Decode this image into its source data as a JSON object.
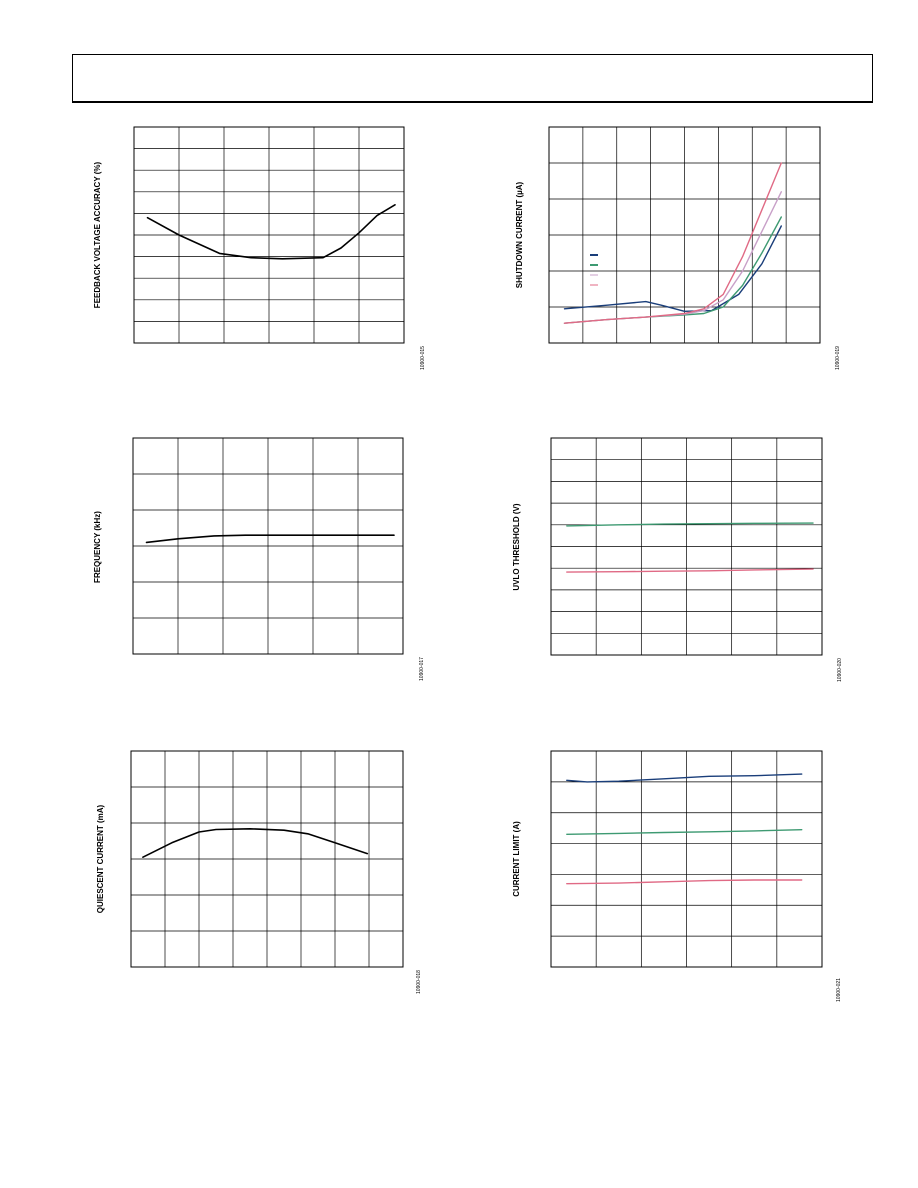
{
  "header": {
    "text": ""
  },
  "chart_data": [
    {
      "type": "line",
      "ylabel": "FEEDBACK VOLTAGE ACCURACY (%)",
      "figure_id": "10900-015",
      "grid": true,
      "xlim": [
        0,
        6
      ],
      "ylim": [
        0,
        10
      ],
      "series": [
        {
          "color": "#000000",
          "x": [
            0.3,
            1.0,
            1.9,
            2.6,
            3.3,
            4.2,
            4.6,
            5.0,
            5.4,
            5.8
          ],
          "y": [
            5.8,
            5.0,
            4.15,
            3.95,
            3.9,
            3.95,
            4.4,
            5.1,
            5.9,
            6.4
          ]
        }
      ]
    },
    {
      "type": "line",
      "ylabel": "SHUTDOWN CURRENT (µA)",
      "figure_id": "10900-019",
      "grid": true,
      "xlim": [
        0,
        7
      ],
      "ylim": [
        0,
        6
      ],
      "legend": {
        "position": "middle-left",
        "colors": [
          "#1a3e7a",
          "#3e9a72",
          "#c8a0c8",
          "#e06a85"
        ]
      },
      "series": [
        {
          "color": "#1a3e7a",
          "x": [
            0.4,
            1.5,
            2.5,
            2.9,
            3.5,
            4.2,
            4.9,
            5.5,
            6.0
          ],
          "y": [
            0.95,
            1.05,
            1.15,
            1.05,
            0.88,
            0.9,
            1.35,
            2.2,
            3.25
          ]
        },
        {
          "color": "#3e9a72",
          "x": [
            0.4,
            1.5,
            2.5,
            3.5,
            4.0,
            4.5,
            5.0,
            5.5,
            6.0
          ],
          "y": [
            0.55,
            0.65,
            0.72,
            0.78,
            0.82,
            1.0,
            1.6,
            2.5,
            3.5
          ]
        },
        {
          "color": "#c8a0c8",
          "x": [
            0.4,
            1.5,
            2.5,
            3.5,
            4.0,
            4.5,
            5.0,
            5.5,
            6.0
          ],
          "y": [
            0.55,
            0.65,
            0.72,
            0.8,
            0.9,
            1.2,
            2.0,
            3.1,
            4.2
          ]
        },
        {
          "color": "#e06a85",
          "x": [
            0.4,
            1.5,
            2.5,
            3.5,
            4.0,
            4.5,
            5.0,
            5.5,
            6.0
          ],
          "y": [
            0.55,
            0.65,
            0.72,
            0.82,
            0.95,
            1.35,
            2.4,
            3.7,
            5.0
          ]
        }
      ]
    },
    {
      "type": "line",
      "ylabel": "FREQUENCY (kHz)",
      "figure_id": "10900-017",
      "grid": true,
      "xlim": [
        0,
        6
      ],
      "ylim": [
        0,
        6
      ],
      "series": [
        {
          "color": "#000000",
          "x": [
            0.3,
            1.0,
            1.8,
            2.5,
            3.5,
            4.5,
            5.8
          ],
          "y": [
            3.1,
            3.2,
            3.28,
            3.3,
            3.3,
            3.3,
            3.3
          ]
        }
      ]
    },
    {
      "type": "line",
      "ylabel": "UVLO THRESHOLD (V)",
      "figure_id": "10900-020",
      "grid": true,
      "xlim": [
        0,
        6
      ],
      "ylim": [
        0,
        10
      ],
      "series": [
        {
          "color": "#3e9a72",
          "x": [
            0.35,
            1.5,
            2.5,
            3.5,
            4.5,
            5.8
          ],
          "y": [
            5.95,
            6.0,
            6.03,
            6.05,
            6.07,
            6.08
          ]
        },
        {
          "color": "#e06a85",
          "x": [
            0.35,
            1.5,
            2.5,
            3.5,
            4.5,
            5.8
          ],
          "y": [
            3.82,
            3.84,
            3.86,
            3.88,
            3.92,
            3.96
          ]
        }
      ]
    },
    {
      "type": "line",
      "ylabel": "QUIESCENT CURRENT (mA)",
      "figure_id": "10900-018",
      "grid": true,
      "xlim": [
        0,
        8
      ],
      "ylim": [
        0,
        6
      ],
      "series": [
        {
          "color": "#000000",
          "x": [
            0.35,
            1.2,
            2.0,
            2.5,
            3.5,
            4.5,
            5.2,
            6.0,
            6.95
          ],
          "y": [
            3.05,
            3.45,
            3.75,
            3.82,
            3.84,
            3.8,
            3.7,
            3.45,
            3.15
          ]
        }
      ]
    },
    {
      "type": "line",
      "ylabel": "CURRENT LIMIT (A)",
      "figure_id": "10900-021",
      "grid": true,
      "xlim": [
        0,
        6
      ],
      "ylim": [
        0,
        7
      ],
      "series": [
        {
          "color": "#1a3e7a",
          "x": [
            0.35,
            0.8,
            1.5,
            2.5,
            3.5,
            4.5,
            5.55
          ],
          "y": [
            6.05,
            6.0,
            6.02,
            6.1,
            6.18,
            6.2,
            6.25
          ]
        },
        {
          "color": "#3e9a72",
          "x": [
            0.35,
            1.5,
            2.5,
            3.5,
            4.5,
            5.55
          ],
          "y": [
            4.3,
            4.33,
            4.36,
            4.38,
            4.41,
            4.45
          ]
        },
        {
          "color": "#e06a85",
          "x": [
            0.35,
            1.5,
            2.5,
            3.5,
            4.5,
            5.55
          ],
          "y": [
            2.7,
            2.72,
            2.76,
            2.8,
            2.82,
            2.82
          ]
        }
      ]
    }
  ]
}
